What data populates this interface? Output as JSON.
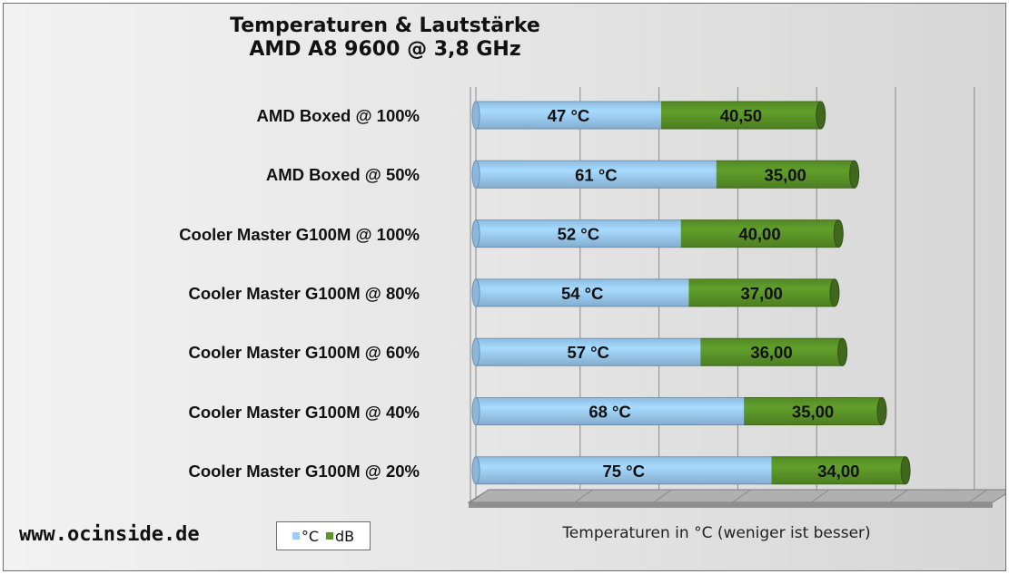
{
  "chart_data": {
    "type": "bar",
    "stacked": true,
    "orientation": "horizontal",
    "title_line1": "Temperaturen & Lautstärke",
    "title_line2": "AMD A8 9600 @ 3,8 GHz",
    "xlabel": "Temperaturen in °C (weniger ist besser)",
    "categories": [
      "AMD Boxed @ 100%",
      "AMD Boxed @ 50%",
      "Cooler Master G100M @ 100%",
      "Cooler Master G100M @ 80%",
      "Cooler Master G100M @ 60%",
      "Cooler Master G100M @ 40%",
      "Cooler Master G100M @ 20%"
    ],
    "series": [
      {
        "name": "°C",
        "color": "#9bcbf4",
        "values": [
          47,
          61,
          52,
          54,
          57,
          68,
          75
        ],
        "labels": [
          "47 °C",
          "61 °C",
          "52 °C",
          "54 °C",
          "57 °C",
          "68 °C",
          "75 °C"
        ]
      },
      {
        "name": "dB",
        "color": "#5a9428",
        "values": [
          40.5,
          35,
          40,
          37,
          36,
          35,
          34
        ],
        "labels": [
          "40,50",
          "35,00",
          "40,00",
          "37,00",
          "36,00",
          "35,00",
          "34,00"
        ]
      }
    ],
    "grid": true,
    "legend_position": "bottom-left"
  },
  "watermark": "www.ocinside.de"
}
